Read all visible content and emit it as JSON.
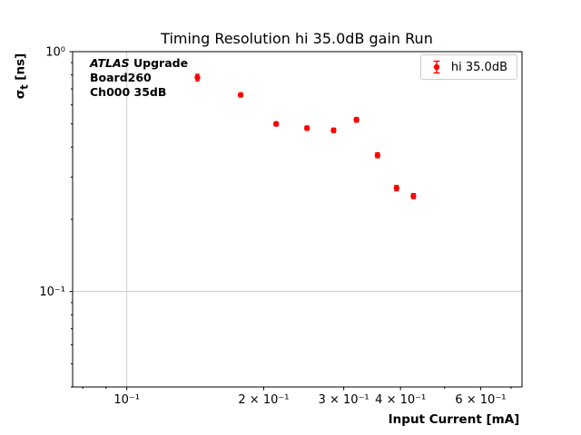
{
  "figure": {
    "title": "Timing Resolution hi 35.0dB gain Run",
    "xlabel": "Input Current [mA]",
    "ylabel_sigma": "σ",
    "ylabel_sub": "t",
    "ylabel_unit": " [ns]",
    "annotation": {
      "line1_italic": "ATLAS",
      "line1_bold": " Upgrade",
      "line2": "Board260",
      "line3": "Ch000 35dB"
    },
    "legend": {
      "label": "hi 35.0dB"
    }
  },
  "chart_data": {
    "type": "scatter",
    "title": "Timing Resolution hi 35.0dB gain Run",
    "xlabel": "Input Current [mA]",
    "ylabel": "σ_t [ns]",
    "xscale": "log",
    "yscale": "log",
    "xlim": [
      0.076,
      0.74
    ],
    "ylim": [
      0.04,
      1.0
    ],
    "grid": true,
    "legend_position": "upper right",
    "series": [
      {
        "name": "hi 35.0dB",
        "color": "#ff0000",
        "marker": "circle",
        "x": [
          0.143,
          0.178,
          0.213,
          0.249,
          0.285,
          0.32,
          0.356,
          0.392,
          0.427
        ],
        "y": [
          0.78,
          0.66,
          0.5,
          0.48,
          0.47,
          0.52,
          0.37,
          0.27,
          0.25
        ],
        "yerr": [
          0.025,
          0.012,
          0.01,
          0.01,
          0.01,
          0.012,
          0.009,
          0.007,
          0.006
        ]
      }
    ],
    "xticks": [
      {
        "value": 0.1,
        "label": "10⁻¹"
      },
      {
        "value": 0.2,
        "label": "2 × 10⁻¹"
      },
      {
        "value": 0.3,
        "label": "3 × 10⁻¹"
      },
      {
        "value": 0.4,
        "label": "4 × 10⁻¹"
      },
      {
        "value": 0.6,
        "label": "6 × 10⁻¹"
      }
    ],
    "xticks_minor": [
      0.08,
      0.09,
      0.5,
      0.7
    ],
    "yticks": [
      {
        "value": 1.0,
        "label": "10⁰"
      },
      {
        "value": 0.1,
        "label": "10⁻¹"
      }
    ],
    "yticks_minor": [
      0.04,
      0.05,
      0.06,
      0.07,
      0.08,
      0.09,
      0.2,
      0.3,
      0.4,
      0.5,
      0.6,
      0.7,
      0.8,
      0.9
    ],
    "gridlines": {
      "x": [
        0.1
      ],
      "y": [
        0.1
      ]
    },
    "grid_color": "#cccccc",
    "frame_color": "#000000"
  }
}
